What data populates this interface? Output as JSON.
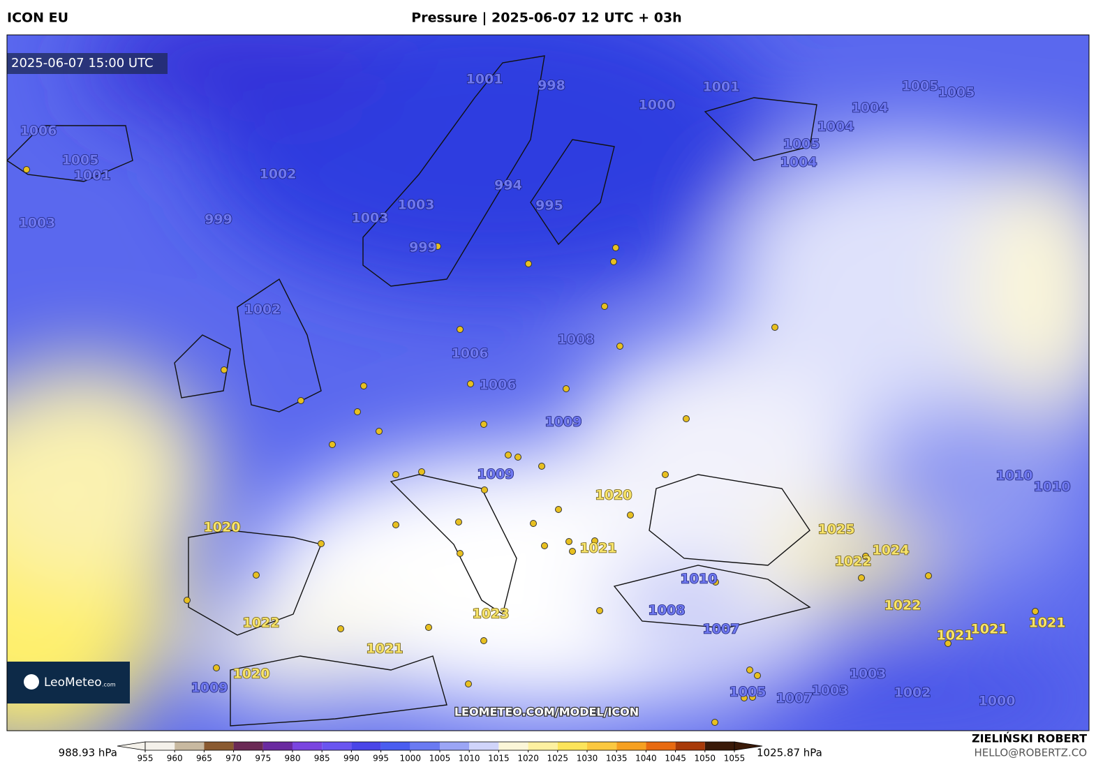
{
  "header": {
    "model": "ICON EU",
    "title": "Pressure | 2025-06-07 12 UTC + 03h"
  },
  "valid_time": "2025-06-07 15:00 UTC",
  "blue_labels": {
    "color": "#6f78f0",
    "outline": "#1d237a",
    "values": [
      1006,
      1005,
      1001,
      1003,
      1002,
      999,
      1001,
      998,
      1001,
      1000,
      1005,
      1005,
      1004,
      1004,
      1005,
      1004,
      994,
      995,
      1003,
      1003,
      999,
      1002,
      1008,
      1006,
      1006,
      1009,
      1009,
      1010,
      1010,
      1010,
      1008,
      1007,
      1009,
      1003,
      1005,
      1007,
      1003,
      1002,
      1000
    ]
  },
  "yellow_labels": {
    "color": "#f7e36a",
    "outline": "#6b5a10",
    "values": [
      1020,
      1020,
      1025,
      1024,
      1022,
      1021,
      1022,
      1021,
      1021,
      1021,
      1023,
      1022,
      1021,
      1020
    ]
  },
  "colorbar": {
    "min_label": "988.93 hPa",
    "max_label": "1025.87 hPa",
    "ticks": [
      955,
      960,
      965,
      970,
      975,
      980,
      985,
      990,
      995,
      1000,
      1005,
      1010,
      1015,
      1020,
      1025,
      1030,
      1035,
      1040,
      1045,
      1050,
      1055
    ],
    "colors": [
      "#f4f1ea",
      "#c8b9a0",
      "#8a5a30",
      "#6b2a55",
      "#6a2aa0",
      "#7a45e0",
      "#6a55f0",
      "#4a45e8",
      "#4a5df0",
      "#6a7af2",
      "#9ba5f5",
      "#d0d4fa",
      "#fbf6d8",
      "#fdf0a0",
      "#fce45a",
      "#fbc840",
      "#f6a020",
      "#e86a10",
      "#a83a08",
      "#3a1a08"
    ]
  },
  "logo": {
    "name": "LeoMeteo",
    "suffix": ".com"
  },
  "watermark": "LEOMETEO.COM/MODEL/ICON",
  "credit": {
    "author": "ZIELIŃSKI ROBERT",
    "contact": "HELLO@ROBERTZ.CO"
  }
}
